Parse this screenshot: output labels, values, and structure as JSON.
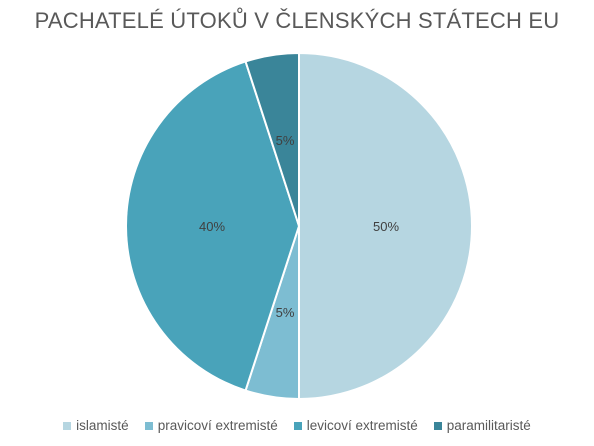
{
  "chart_data": {
    "type": "pie",
    "title": "PACHATELÉ ÚTOKŮ V ČLENSKÝCH STÁTECH EU",
    "legend_position": "bottom",
    "slices": [
      {
        "name": "islamisté",
        "value": 50,
        "label": "50%",
        "color": "#b6d6e1"
      },
      {
        "name": "pravicoví extremisté",
        "value": 5,
        "label": "5%",
        "color": "#7dbdd2"
      },
      {
        "name": "levicoví extremisté",
        "value": 40,
        "label": "40%",
        "color": "#49a3ba"
      },
      {
        "name": "paramilitaristé",
        "value": 5,
        "label": "5%",
        "color": "#3a8599"
      }
    ]
  }
}
